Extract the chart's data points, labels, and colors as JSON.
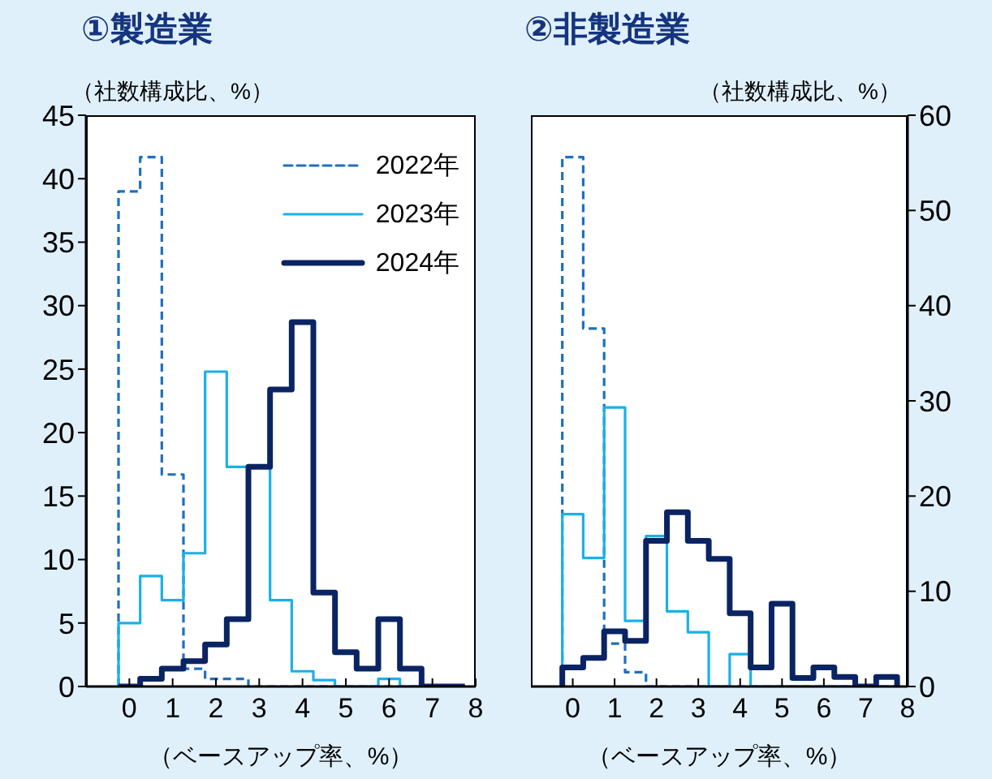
{
  "chart_data": [
    {
      "type": "histogram",
      "title": "①製造業",
      "ylabel": "（社数構成比、%）",
      "xlabel": "（ベースアップ率、%）",
      "bins": [
        -0.25,
        0.25,
        0.75,
        1.25,
        1.75,
        2.25,
        2.75,
        3.25,
        3.75,
        4.25,
        4.75,
        5.25,
        5.75,
        6.25,
        6.75,
        7.25,
        7.75
      ],
      "xlim": [
        -1,
        8
      ],
      "xticks": [
        0,
        1,
        2,
        3,
        4,
        5,
        6,
        7,
        8
      ],
      "ylim": [
        0,
        45
      ],
      "yticks": [
        0,
        5,
        10,
        15,
        20,
        25,
        30,
        35,
        40,
        45
      ],
      "legend": "top right",
      "series": [
        {
          "name": "2022年",
          "color": "#1f6fc0",
          "line_style": "dashed",
          "values": [
            39,
            41.7,
            16.7,
            1.4,
            0.6,
            0.6,
            0,
            0,
            0,
            0,
            0,
            0,
            0,
            0,
            0,
            0
          ]
        },
        {
          "name": "2023年",
          "color": "#1ab0e8",
          "line_style": "solid",
          "values": [
            5,
            8.7,
            6.8,
            10.5,
            24.8,
            17.3,
            17.3,
            6.8,
            1.2,
            0.5,
            0,
            0,
            0.6,
            0,
            0,
            0
          ]
        },
        {
          "name": "2024年",
          "color": "#0a2463",
          "line_style": "solid",
          "values": [
            0,
            0.6,
            1.4,
            2,
            3.3,
            5.3,
            17.3,
            23.4,
            28.7,
            7.4,
            2.7,
            1.4,
            5.3,
            1.4,
            0,
            0
          ]
        }
      ]
    },
    {
      "type": "histogram",
      "title": "②非製造業",
      "ylabel": "（社数構成比、%）",
      "xlabel": "（ベースアップ率、%）",
      "bins": [
        -0.25,
        0.25,
        0.75,
        1.25,
        1.75,
        2.25,
        2.75,
        3.25,
        3.75,
        4.25,
        4.75,
        5.25,
        5.75,
        6.25,
        6.75,
        7.25,
        7.75
      ],
      "xlim": [
        -1,
        8
      ],
      "xticks": [
        0,
        1,
        2,
        3,
        4,
        5,
        6,
        7,
        8
      ],
      "ylim": [
        0,
        60
      ],
      "yticks": [
        0,
        10,
        20,
        30,
        40,
        50,
        60
      ],
      "legend": false,
      "series": [
        {
          "color": "#1f6fc0",
          "line_style": "dashed",
          "values": [
            55.6,
            37.6,
            4.5,
            1.5,
            0,
            0,
            0,
            0,
            0,
            0,
            0,
            0,
            0,
            0,
            0,
            0
          ]
        },
        {
          "color": "#1ab0e8",
          "line_style": "solid",
          "values": [
            18.1,
            13.5,
            29.3,
            6.9,
            15.8,
            7.9,
            5.7,
            0,
            3.4,
            0,
            0,
            0,
            0,
            0,
            0,
            0
          ]
        },
        {
          "color": "#0a2463",
          "line_style": "solid",
          "values": [
            2,
            3,
            5.8,
            4.8,
            15.3,
            18.3,
            15.3,
            13.4,
            7.7,
            2,
            8.7,
            0.9,
            2,
            1,
            0,
            1
          ]
        }
      ]
    }
  ]
}
